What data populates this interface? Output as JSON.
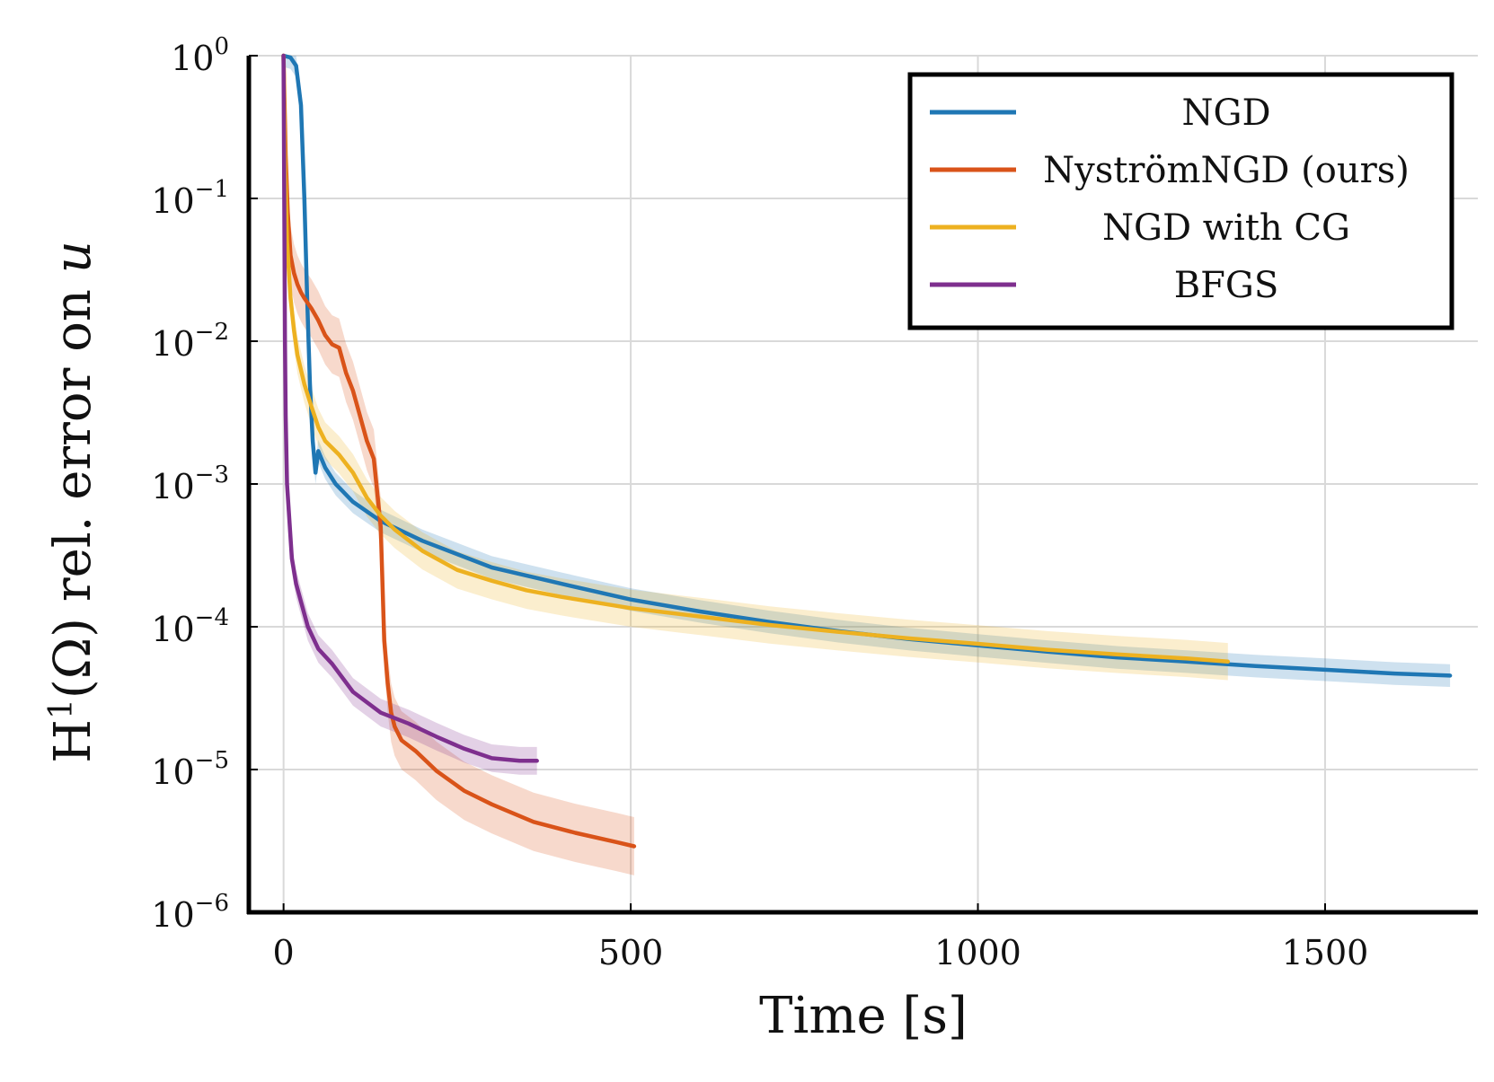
{
  "chart_data": {
    "type": "line",
    "title": "",
    "xlabel": "Time [s]",
    "ylabel_main": "H",
    "ylabel_sup": "1",
    "ylabel_rest": "(Ω) rel. error on ",
    "ylabel_var": "u",
    "xlim": [
      -50,
      1720
    ],
    "ylim_log10": [
      -6,
      0
    ],
    "yscale": "log",
    "grid": true,
    "legend_position": "top-right",
    "xticks": [
      {
        "value": 0,
        "label": "0"
      },
      {
        "value": 500,
        "label": "500"
      },
      {
        "value": 1000,
        "label": "1000"
      },
      {
        "value": 1500,
        "label": "1500"
      }
    ],
    "yticks": [
      {
        "exp": 0,
        "base": "10",
        "sup": "0"
      },
      {
        "exp": -1,
        "base": "10",
        "sup": "−1"
      },
      {
        "exp": -2,
        "base": "10",
        "sup": "−2"
      },
      {
        "exp": -3,
        "base": "10",
        "sup": "−3"
      },
      {
        "exp": -4,
        "base": "10",
        "sup": "−4"
      },
      {
        "exp": -5,
        "base": "10",
        "sup": "−5"
      },
      {
        "exp": -6,
        "base": "10",
        "sup": "−6"
      }
    ],
    "series": [
      {
        "name": "NGD",
        "color": "#1f77b4",
        "band_factor": 1.2,
        "x": [
          0,
          10,
          18,
          25,
          30,
          34,
          38,
          42,
          46,
          50,
          60,
          75,
          100,
          140,
          200,
          300,
          400,
          500,
          600,
          700,
          800,
          900,
          1000,
          1100,
          1200,
          1300,
          1400,
          1500,
          1600,
          1680
        ],
        "y": [
          1.0,
          0.97,
          0.85,
          0.45,
          0.1,
          0.02,
          0.005,
          0.002,
          0.0012,
          0.0017,
          0.0013,
          0.001,
          0.00075,
          0.00055,
          0.0004,
          0.00026,
          0.0002,
          0.000155,
          0.000128,
          0.000108,
          9.3e-05,
          8.2e-05,
          7.4e-05,
          6.7e-05,
          6.1e-05,
          5.7e-05,
          5.3e-05,
          5e-05,
          4.7e-05,
          4.55e-05
        ]
      },
      {
        "name": "NyströmNGD (ours)",
        "color": "#d95319",
        "band_factor": 1.6,
        "x": [
          0,
          3,
          6,
          10,
          15,
          20,
          25,
          30,
          40,
          50,
          60,
          70,
          80,
          90,
          100,
          110,
          120,
          130,
          140,
          145,
          150,
          155,
          160,
          170,
          190,
          220,
          260,
          300,
          360,
          420,
          480,
          505
        ],
        "y": [
          1.0,
          0.2,
          0.08,
          0.04,
          0.03,
          0.025,
          0.022,
          0.02,
          0.017,
          0.014,
          0.011,
          0.0095,
          0.009,
          0.006,
          0.0045,
          0.003,
          0.002,
          0.0015,
          0.0005,
          8e-05,
          4e-05,
          2.5e-05,
          2e-05,
          1.6e-05,
          1.35e-05,
          9.8e-06,
          7.1e-06,
          5.7e-06,
          4.3e-06,
          3.6e-06,
          3.1e-06,
          2.9e-06
        ]
      },
      {
        "name": "NGD with CG",
        "color": "#edb120",
        "band_factor": 1.35,
        "x": [
          0,
          2,
          5,
          10,
          15,
          20,
          30,
          40,
          50,
          60,
          80,
          100,
          120,
          140,
          160,
          200,
          250,
          300,
          350,
          400,
          500,
          600,
          700,
          800,
          900,
          1000,
          1100,
          1200,
          1300,
          1360
        ],
        "y": [
          1.0,
          0.2,
          0.05,
          0.02,
          0.012,
          0.008,
          0.005,
          0.0035,
          0.0025,
          0.002,
          0.0016,
          0.0012,
          0.0008,
          0.0006,
          0.00048,
          0.00034,
          0.00025,
          0.00021,
          0.00018,
          0.000162,
          0.000135,
          0.000118,
          0.000103,
          9.2e-05,
          8.3e-05,
          7.6e-05,
          6.9e-05,
          6.4e-05,
          6e-05,
          5.7e-05
        ]
      },
      {
        "name": "BFGS",
        "color": "#7e2f8e",
        "band_factor": 1.25,
        "x": [
          0,
          1,
          2,
          3,
          5,
          8,
          12,
          18,
          25,
          35,
          50,
          70,
          100,
          140,
          180,
          220,
          260,
          300,
          340,
          365
        ],
        "y": [
          1.0,
          0.1,
          0.01,
          0.003,
          0.001,
          0.0006,
          0.0003,
          0.0002,
          0.00015,
          0.0001,
          7e-05,
          5.5e-05,
          3.5e-05,
          2.5e-05,
          2.1e-05,
          1.7e-05,
          1.4e-05,
          1.2e-05,
          1.15e-05,
          1.15e-05
        ]
      }
    ]
  }
}
